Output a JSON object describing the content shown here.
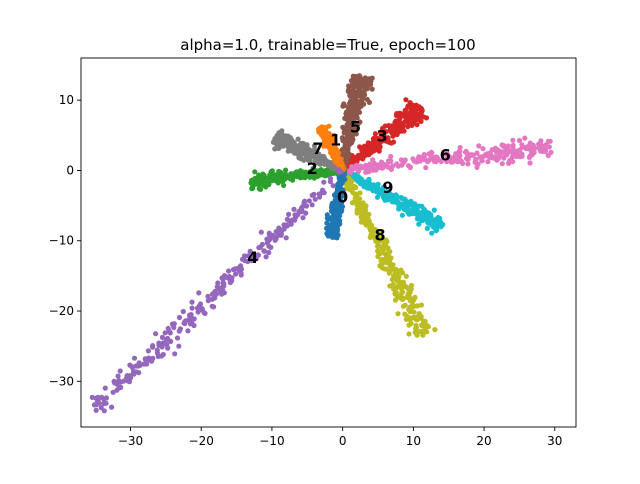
{
  "chart_data": {
    "type": "scatter",
    "title": "alpha=1.0, trainable=True, epoch=100",
    "xlabel": "",
    "ylabel": "",
    "xlim": [
      -37,
      33
    ],
    "ylim": [
      -36.5,
      16
    ],
    "xticks": [
      -30,
      -20,
      -10,
      0,
      10,
      20,
      30
    ],
    "yticks": [
      10,
      0,
      -10,
      -20,
      -30
    ],
    "grid": false,
    "legend": "none",
    "series": [
      {
        "cluster": "0",
        "color": "#1f77b4",
        "start": [
          0,
          0
        ],
        "end": [
          -1.5,
          -9.5
        ],
        "width": 0.9
      },
      {
        "cluster": "1",
        "color": "#ff7f0e",
        "start": [
          0,
          0
        ],
        "end": [
          -3.0,
          6.2
        ],
        "width": 0.7
      },
      {
        "cluster": "2",
        "color": "#2ca02c",
        "start": [
          0,
          0
        ],
        "end": [
          -13.0,
          -1.5
        ],
        "width": 1.0
      },
      {
        "cluster": "3",
        "color": "#d62728",
        "start": [
          0,
          0
        ],
        "end": [
          11.0,
          9.0
        ],
        "width": 1.4
      },
      {
        "cluster": "4",
        "color": "#9467bd",
        "start": [
          0,
          0
        ],
        "end": [
          -35.0,
          -34.0
        ],
        "width": 1.7
      },
      {
        "cluster": "5",
        "color": "#8c564b",
        "start": [
          0,
          0
        ],
        "end": [
          2.5,
          13.5
        ],
        "width": 1.5
      },
      {
        "cluster": "6",
        "color": "#e377c2",
        "start": [
          0,
          0
        ],
        "end": [
          29.5,
          3.3
        ],
        "width": 1.4
      },
      {
        "cluster": "7",
        "color": "#7f7f7f",
        "start": [
          0,
          0
        ],
        "end": [
          -9.5,
          4.8
        ],
        "width": 1.2
      },
      {
        "cluster": "8",
        "color": "#bcbd22",
        "start": [
          0,
          0
        ],
        "end": [
          11.5,
          -23.5
        ],
        "width": 1.5
      },
      {
        "cluster": "9",
        "color": "#17becf",
        "start": [
          0,
          0
        ],
        "end": [
          14.0,
          -8.0
        ],
        "width": 1.1
      }
    ],
    "annotations": [
      {
        "text": "0",
        "x": 0.0,
        "y": -3.8
      },
      {
        "text": "1",
        "x": -1.0,
        "y": 4.3
      },
      {
        "text": "2",
        "x": -4.3,
        "y": 0.3
      },
      {
        "text": "3",
        "x": 5.6,
        "y": 4.9
      },
      {
        "text": "4",
        "x": -12.7,
        "y": -12.4
      },
      {
        "text": "5",
        "x": 1.8,
        "y": 6.2
      },
      {
        "text": "6",
        "x": 14.5,
        "y": 2.2
      },
      {
        "text": "7",
        "x": -3.5,
        "y": 3.1
      },
      {
        "text": "8",
        "x": 5.3,
        "y": -9.2
      },
      {
        "text": "9",
        "x": 6.4,
        "y": -2.4
      }
    ]
  }
}
